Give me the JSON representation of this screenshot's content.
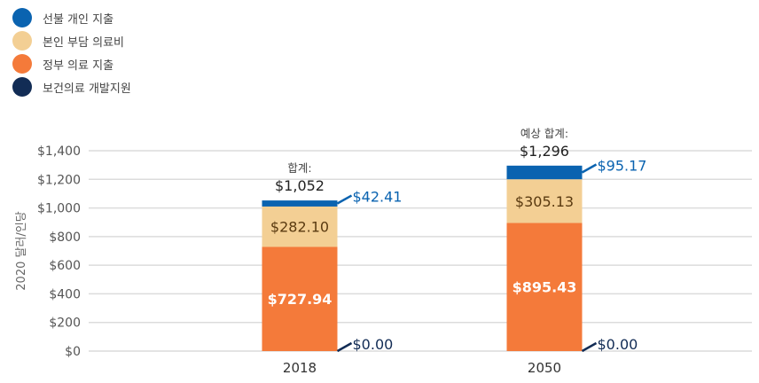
{
  "legend": [
    {
      "label": "선불 개인 지출",
      "color": "#0a63b0"
    },
    {
      "label": "본인 부담 의료비",
      "color": "#f3cf94"
    },
    {
      "label": "정부 의료 지출",
      "color": "#f47a3a"
    },
    {
      "label": "보건의료 개발지원",
      "color": "#122c55"
    }
  ],
  "chart_data": {
    "type": "bar",
    "stacked": true,
    "title": "",
    "xlabel": "",
    "ylabel": "2020 달러/인당",
    "ylim": [
      0,
      1400
    ],
    "yticks": [
      0,
      200,
      400,
      600,
      800,
      1000,
      1200,
      1400
    ],
    "ytick_labels": [
      "$0",
      "$200",
      "$400",
      "$600",
      "$800",
      "$1,000",
      "$1,200",
      "$1,400"
    ],
    "grid": true,
    "legend_position": "top-left",
    "categories": [
      "2018",
      "2050"
    ],
    "series": [
      {
        "name": "보건의료 개발지원",
        "color": "#122c55",
        "values": [
          0.0,
          0.0
        ],
        "labels": [
          "$0.00",
          "$0.00"
        ],
        "label_color": "#122c55",
        "label_position": "outside-right"
      },
      {
        "name": "정부 의료 지출",
        "color": "#f47a3a",
        "values": [
          727.94,
          895.43
        ],
        "labels": [
          "$727.94",
          "$895.43"
        ],
        "label_color": "#ffffff",
        "label_position": "inside"
      },
      {
        "name": "본인 부담 의료비",
        "color": "#f3cf94",
        "values": [
          282.1,
          305.13
        ],
        "labels": [
          "$282.10",
          "$305.13"
        ],
        "label_color": "#5a3a10",
        "label_position": "inside"
      },
      {
        "name": "선불 개인 지출",
        "color": "#0a63b0",
        "values": [
          42.41,
          95.17
        ],
        "labels": [
          "$42.41",
          "$95.17"
        ],
        "label_color": "#0a63b0",
        "label_position": "outside-right"
      }
    ],
    "totals": [
      {
        "caption": "합계:",
        "value": 1052,
        "label": "$1,052"
      },
      {
        "caption": "예상 합계:",
        "value": 1296,
        "label": "$1,296"
      }
    ]
  }
}
